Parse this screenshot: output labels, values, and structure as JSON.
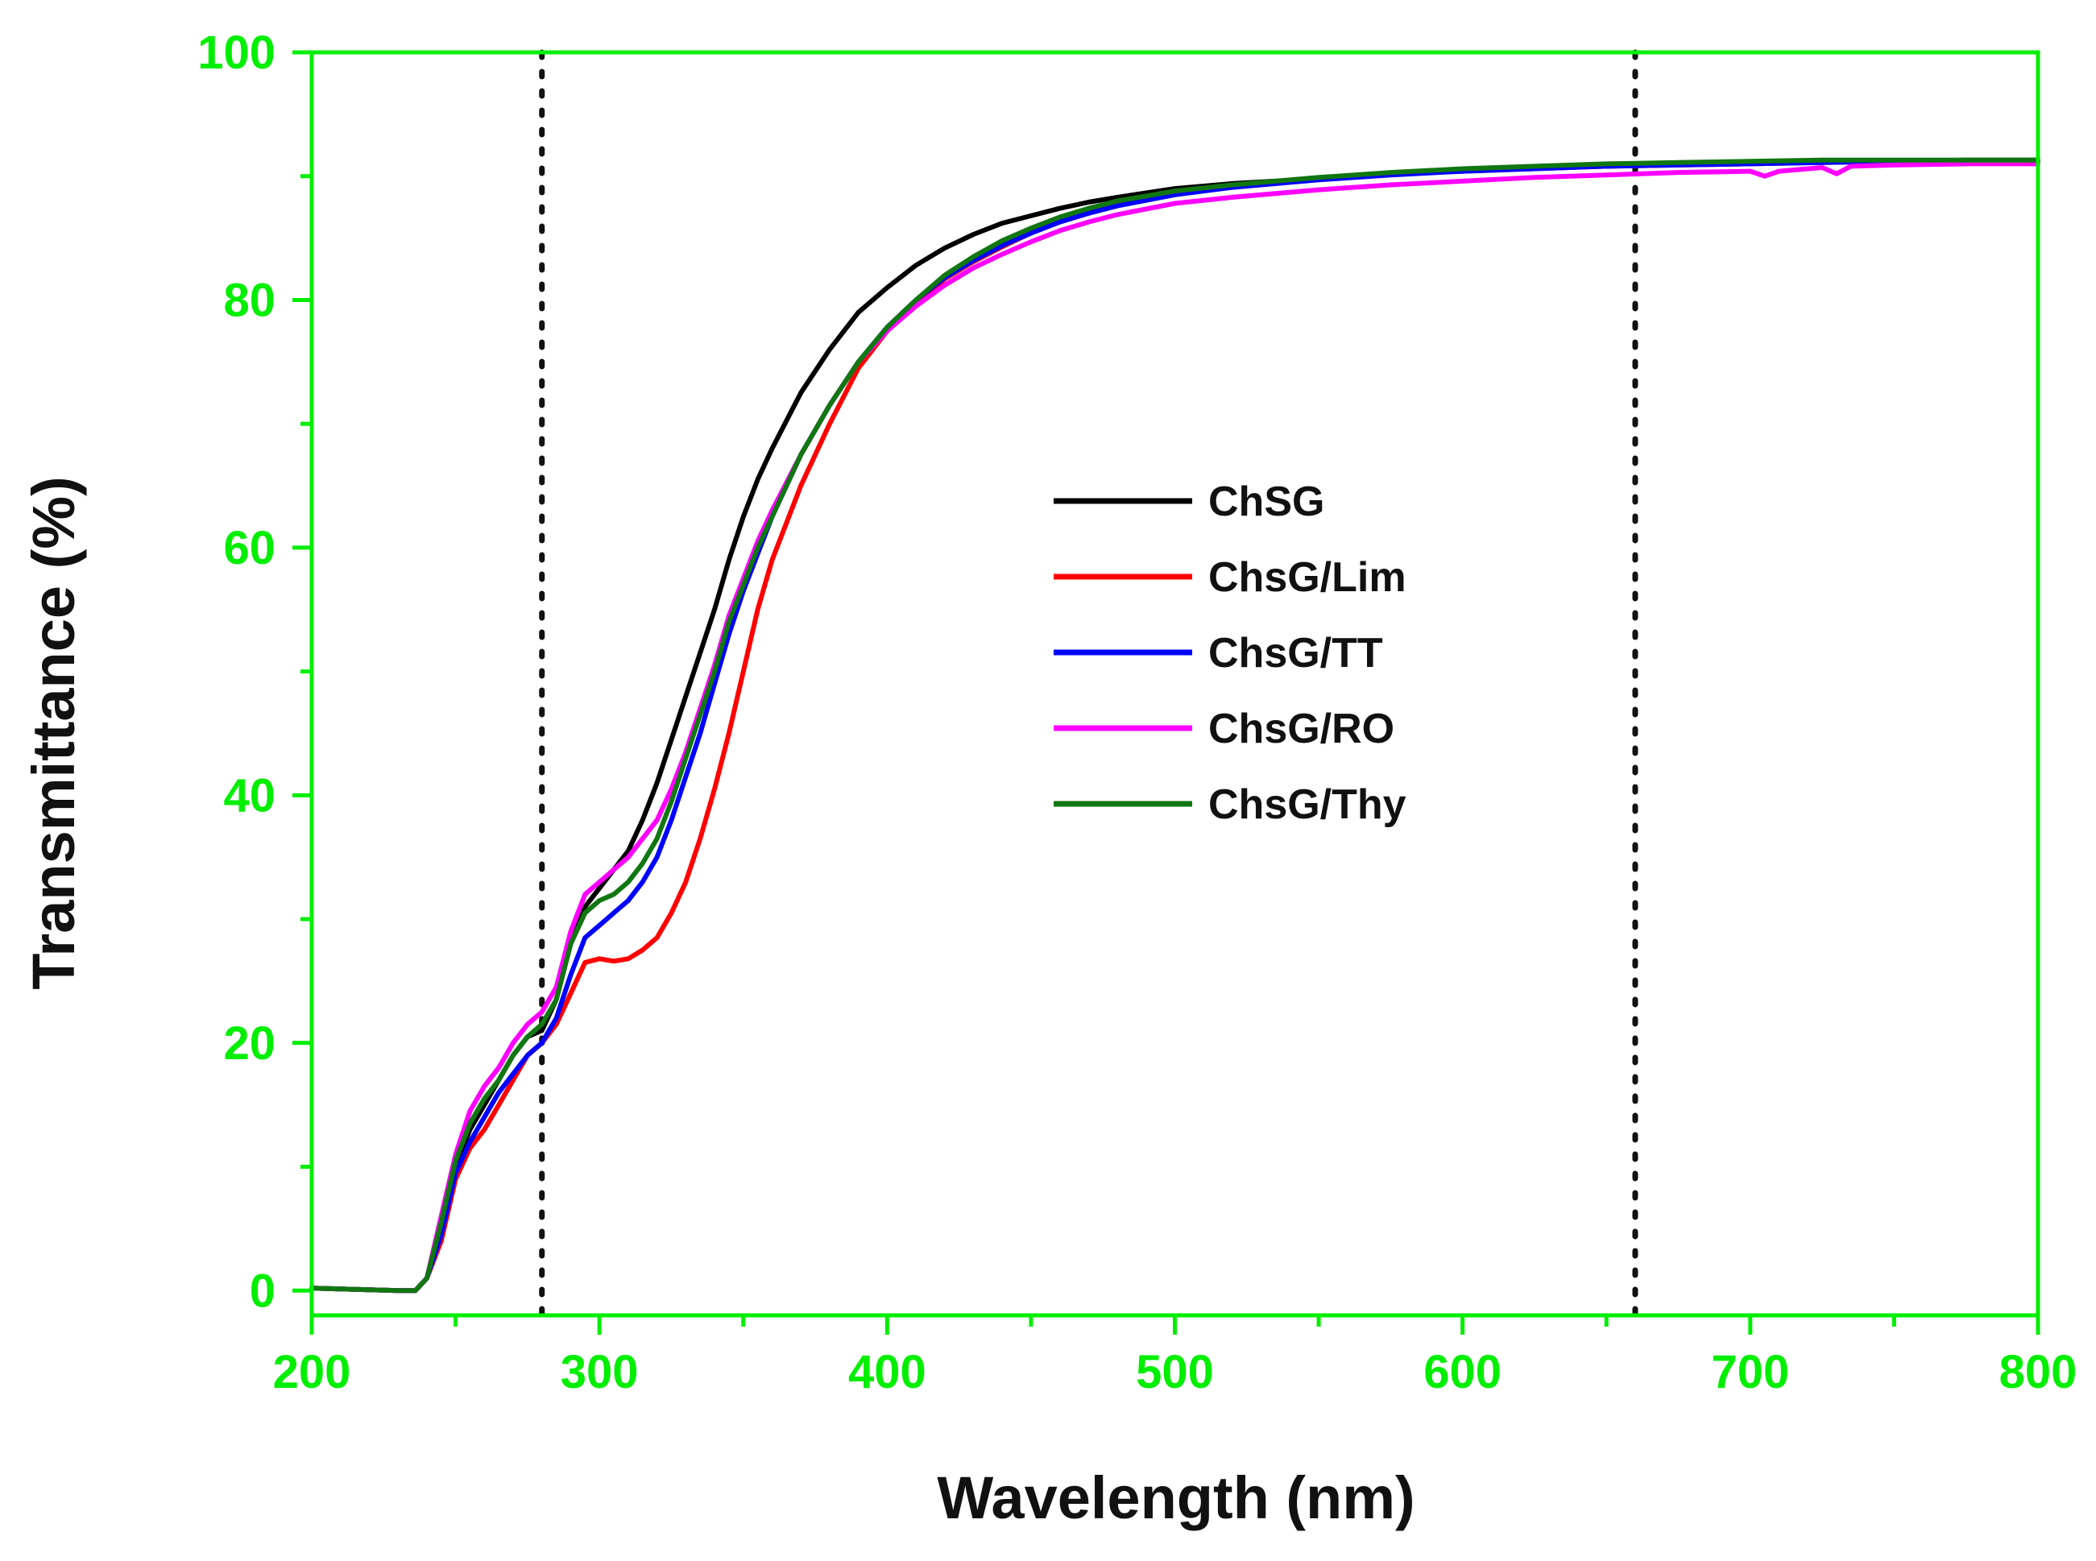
{
  "chart_data": {
    "type": "line",
    "title": "",
    "xlabel": "Wavelength (nm)",
    "ylabel": "Transmittance (%)",
    "xlim": [
      200,
      800
    ],
    "ylim": [
      -2,
      100
    ],
    "xticks": [
      200,
      300,
      400,
      500,
      600,
      700,
      800
    ],
    "yticks": [
      0,
      20,
      40,
      60,
      80,
      100
    ],
    "x_minor_step": 50,
    "y_minor_step": 10,
    "grid": false,
    "legend_position": "center",
    "reference_lines_x": [
      280,
      660
    ],
    "colors": {
      "axis": "#00ee00",
      "reference": "#111111"
    },
    "series": [
      {
        "name": "ChSG",
        "color": "#000000",
        "x": [
          200,
          215,
          230,
          236,
          240,
          245,
          250,
          255,
          260,
          265,
          270,
          275,
          280,
          285,
          290,
          295,
          300,
          305,
          310,
          315,
          320,
          325,
          330,
          335,
          340,
          345,
          350,
          355,
          360,
          370,
          380,
          390,
          400,
          410,
          420,
          430,
          440,
          450,
          460,
          470,
          480,
          500,
          520,
          550,
          575,
          600,
          625,
          650,
          675,
          700,
          725,
          750,
          775,
          800
        ],
        "values": [
          0.2,
          0.1,
          0,
          0,
          1,
          5,
          10,
          13,
          15,
          17,
          19,
          20.5,
          21,
          23.5,
          28,
          31,
          32.5,
          34,
          35.5,
          38,
          41,
          44.5,
          48,
          51.5,
          55,
          59,
          62.5,
          65.5,
          68,
          72.5,
          76,
          79,
          81,
          82.8,
          84.2,
          85.3,
          86.2,
          86.8,
          87.4,
          87.9,
          88.3,
          89,
          89.4,
          89.8,
          90.2,
          90.5,
          90.7,
          90.8,
          91,
          91.1,
          91.2,
          91.2,
          91.3,
          91.3
        ]
      },
      {
        "name": "ChsG/Lim",
        "color": "#ff0000",
        "x": [
          200,
          215,
          230,
          236,
          240,
          245,
          250,
          255,
          260,
          265,
          270,
          275,
          280,
          285,
          290,
          295,
          300,
          305,
          310,
          315,
          320,
          325,
          330,
          335,
          340,
          345,
          350,
          355,
          360,
          370,
          380,
          390,
          400,
          410,
          420,
          430,
          440,
          450,
          460,
          470,
          480,
          500,
          520,
          550,
          575,
          600,
          625,
          650,
          675,
          700,
          725,
          750,
          775,
          800
        ],
        "values": [
          0.2,
          0.1,
          0,
          0,
          1,
          4,
          9,
          11.5,
          13,
          15,
          17,
          19,
          20,
          21.5,
          24,
          26.5,
          26.8,
          26.6,
          26.8,
          27.5,
          28.5,
          30.5,
          33,
          36.5,
          40.5,
          45,
          50,
          55,
          59,
          65,
          70,
          74.5,
          77.5,
          79.8,
          81.7,
          83.1,
          84.3,
          85.4,
          86.3,
          87,
          87.7,
          88.7,
          89.2,
          89.8,
          90.2,
          90.4,
          90.6,
          90.8,
          90.9,
          91,
          91.1,
          91.2,
          91.2,
          91.2
        ]
      },
      {
        "name": "ChsG/TT",
        "color": "#0000ff",
        "x": [
          200,
          215,
          230,
          236,
          240,
          245,
          250,
          255,
          260,
          265,
          270,
          275,
          280,
          285,
          290,
          295,
          300,
          305,
          310,
          315,
          320,
          325,
          330,
          335,
          340,
          345,
          350,
          355,
          360,
          370,
          380,
          390,
          400,
          410,
          420,
          430,
          440,
          450,
          460,
          470,
          480,
          500,
          520,
          550,
          575,
          600,
          625,
          650,
          675,
          700,
          725,
          750,
          775,
          800
        ],
        "values": [
          0.2,
          0.1,
          0,
          0,
          1,
          4.5,
          9.5,
          12,
          14,
          16,
          17.5,
          19,
          20,
          22,
          25.5,
          28.5,
          29.5,
          30.5,
          31.5,
          33,
          35,
          38,
          41.5,
          45,
          49,
          53,
          56.5,
          59.5,
          62.5,
          67.5,
          71.5,
          75,
          77.8,
          80,
          81.8,
          83.2,
          84.4,
          85.4,
          86.3,
          87,
          87.6,
          88.5,
          89.1,
          89.7,
          90.1,
          90.4,
          90.6,
          90.8,
          90.9,
          91,
          91.1,
          91.2,
          91.2,
          91.2
        ]
      },
      {
        "name": "ChsG/RO",
        "color": "#ff00ff",
        "x": [
          200,
          215,
          230,
          236,
          240,
          245,
          250,
          255,
          260,
          265,
          270,
          275,
          280,
          285,
          290,
          295,
          300,
          305,
          310,
          315,
          320,
          325,
          330,
          335,
          340,
          345,
          350,
          355,
          360,
          370,
          380,
          390,
          400,
          410,
          420,
          430,
          440,
          450,
          460,
          470,
          480,
          500,
          520,
          550,
          575,
          600,
          625,
          650,
          675,
          700,
          705,
          710,
          725,
          730,
          735,
          750,
          775,
          800
        ],
        "values": [
          0.2,
          0.1,
          0,
          0,
          1,
          6,
          11,
          14.5,
          16.5,
          18,
          20,
          21.5,
          22.5,
          24.5,
          29,
          32,
          33,
          34,
          35,
          36.5,
          38,
          40.5,
          43.5,
          47,
          50.5,
          54.5,
          57.5,
          60.5,
          63,
          67.5,
          71.5,
          75,
          77.5,
          79.5,
          81.2,
          82.6,
          83.7,
          84.7,
          85.6,
          86.3,
          86.9,
          87.8,
          88.3,
          88.9,
          89.3,
          89.6,
          89.9,
          90.1,
          90.3,
          90.4,
          90,
          90.4,
          90.7,
          90.2,
          90.8,
          90.9,
          91,
          91
        ]
      },
      {
        "name": "ChsG/Thy",
        "color": "#117711",
        "x": [
          200,
          215,
          230,
          236,
          240,
          245,
          250,
          255,
          260,
          265,
          270,
          275,
          280,
          285,
          290,
          295,
          300,
          305,
          310,
          315,
          320,
          325,
          330,
          335,
          340,
          345,
          350,
          355,
          360,
          370,
          380,
          390,
          400,
          410,
          420,
          430,
          440,
          450,
          460,
          470,
          480,
          500,
          520,
          550,
          575,
          600,
          625,
          650,
          675,
          700,
          725,
          750,
          775,
          800
        ],
        "values": [
          0.2,
          0.1,
          0,
          0,
          1,
          5.5,
          10.5,
          13.5,
          15.5,
          17,
          19,
          20.5,
          21.5,
          23.5,
          28,
          30.5,
          31.5,
          32,
          33,
          34.5,
          36.5,
          39.5,
          43,
          46.5,
          50,
          54,
          57,
          60,
          62.5,
          67.5,
          71.5,
          75,
          77.8,
          80,
          82,
          83.5,
          84.8,
          85.8,
          86.7,
          87.4,
          88,
          88.8,
          89.3,
          89.9,
          90.3,
          90.6,
          90.8,
          91,
          91.1,
          91.2,
          91.3,
          91.3,
          91.3,
          91.3
        ]
      }
    ]
  }
}
